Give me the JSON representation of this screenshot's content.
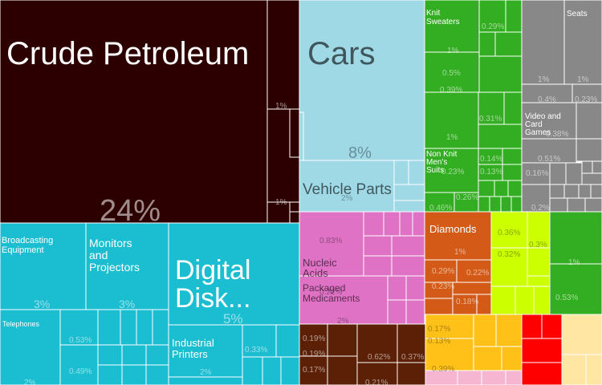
{
  "chart_data": {
    "type": "treemap",
    "title": "",
    "colors": {
      "mineral": "#2d0000",
      "transport": "#9fd9e6",
      "textiles": "#33ad21",
      "misc": "#888888",
      "machinery": "#1bbdd0",
      "chemicals": "#df72c5",
      "precious_metals": "#d35b17",
      "vegetable": "#ccff00",
      "animal_products": "#ffc118",
      "metals": "#5b2006",
      "plastics": "#f6b6d1",
      "foodstuffs": "#ff0000",
      "paper": "#ffe6a2",
      "border": "#ffffff"
    },
    "labeled_tiles": [
      {
        "id": "crude",
        "label": "Crude Petroleum",
        "share": "24%",
        "group": "mineral"
      },
      {
        "id": "cars",
        "label": "Cars",
        "share": "8%",
        "group": "transport"
      },
      {
        "id": "vparts",
        "label": "Vehicle Parts",
        "share": "2%",
        "group": "transport"
      },
      {
        "id": "knit",
        "label": "Knit Sweaters",
        "share": "1%",
        "group": "textiles"
      },
      {
        "id": "nonknit",
        "label": "Non Knit Men's Suits",
        "share": "0.23%",
        "group": "textiles"
      },
      {
        "id": "seats",
        "label": "Seats",
        "share": "1%",
        "group": "misc"
      },
      {
        "id": "video",
        "label": "Video and Card Games",
        "share": "0.38%",
        "group": "misc"
      },
      {
        "id": "broadcast",
        "label": "Broadcasting Equipment",
        "share": "3%",
        "group": "machinery"
      },
      {
        "id": "monitors",
        "label": "Monitors and Projectors",
        "share": "3%",
        "group": "machinery"
      },
      {
        "id": "digital",
        "label": "Digital Disk...",
        "share": "5%",
        "group": "machinery"
      },
      {
        "id": "telephones",
        "label": "Telephones",
        "share": "2%",
        "group": "machinery"
      },
      {
        "id": "printers",
        "label": "Industrial Printers",
        "share": "2%",
        "group": "machinery"
      },
      {
        "id": "nucleic",
        "label": "Nucleic Acids",
        "share": "0.83%",
        "group": "chemicals"
      },
      {
        "id": "packaged",
        "label": "Packaged Medicaments",
        "share": "2%",
        "group": "chemicals"
      },
      {
        "id": "diamonds",
        "label": "Diamonds",
        "share": "1%",
        "group": "precious_metals"
      }
    ],
    "labels": {
      "crude": "Crude Petroleum",
      "crude_pct": "24%",
      "cars": "Cars",
      "cars_pct": "8%",
      "vparts": "Vehicle Parts",
      "vparts_pct": "2%",
      "knit": "Knit Sweaters",
      "nonknit": "Non Knit Men's Suits",
      "nonknit_pct": "0.23%",
      "seats": "Seats",
      "video": "Video and Card Games",
      "video_pct": "0.38%",
      "broadcast": "Broadcasting Equipment",
      "broadcast_pct": "3%",
      "monitors": "Monitors and Projectors",
      "monitors_pct": "3%",
      "digital": "Digital Disk...",
      "digital_pct": "5%",
      "telephones": "Telephones",
      "telephones_pct": "2%",
      "printers": "Industrial Printers",
      "printers_pct": "2%",
      "nucleic": "Nucleic Acids",
      "nucleic_pct": "0.83%",
      "packaged": "Packaged Medicaments",
      "packaged_pct": "2%",
      "diamonds": "Diamonds",
      "diamonds_pct": "1%"
    },
    "unlabeled_shares": {
      "mineral": [
        "1%",
        "1%"
      ],
      "textiles": [
        "0.29%",
        "1%",
        "0.5%",
        "0.39%",
        "0.31%",
        "1%",
        "0.14%",
        "0.13%",
        "0.26%",
        "0.46%"
      ],
      "misc": [
        "1%",
        "1%",
        "0.4%",
        "0.23%",
        "0.51%",
        "0.16%",
        "0.2%"
      ],
      "machinery": [
        "0.53%",
        "0.49%",
        "0.33%"
      ],
      "chemicals": [
        "0.22%"
      ],
      "precious_metals": [
        "0.29%",
        "0.22%",
        "0.23%",
        "0.18%"
      ],
      "vegetable": [
        "0.36%",
        "0.3%",
        "0.32%"
      ],
      "textiles_right": [
        "1%",
        "0.53%"
      ],
      "metals": [
        "0.19%",
        "0.19%",
        "0.17%",
        "0.62%",
        "0.37%",
        "0.21%"
      ],
      "animal_products": [
        "0.17%",
        "0.13%",
        "0.39%"
      ]
    }
  }
}
